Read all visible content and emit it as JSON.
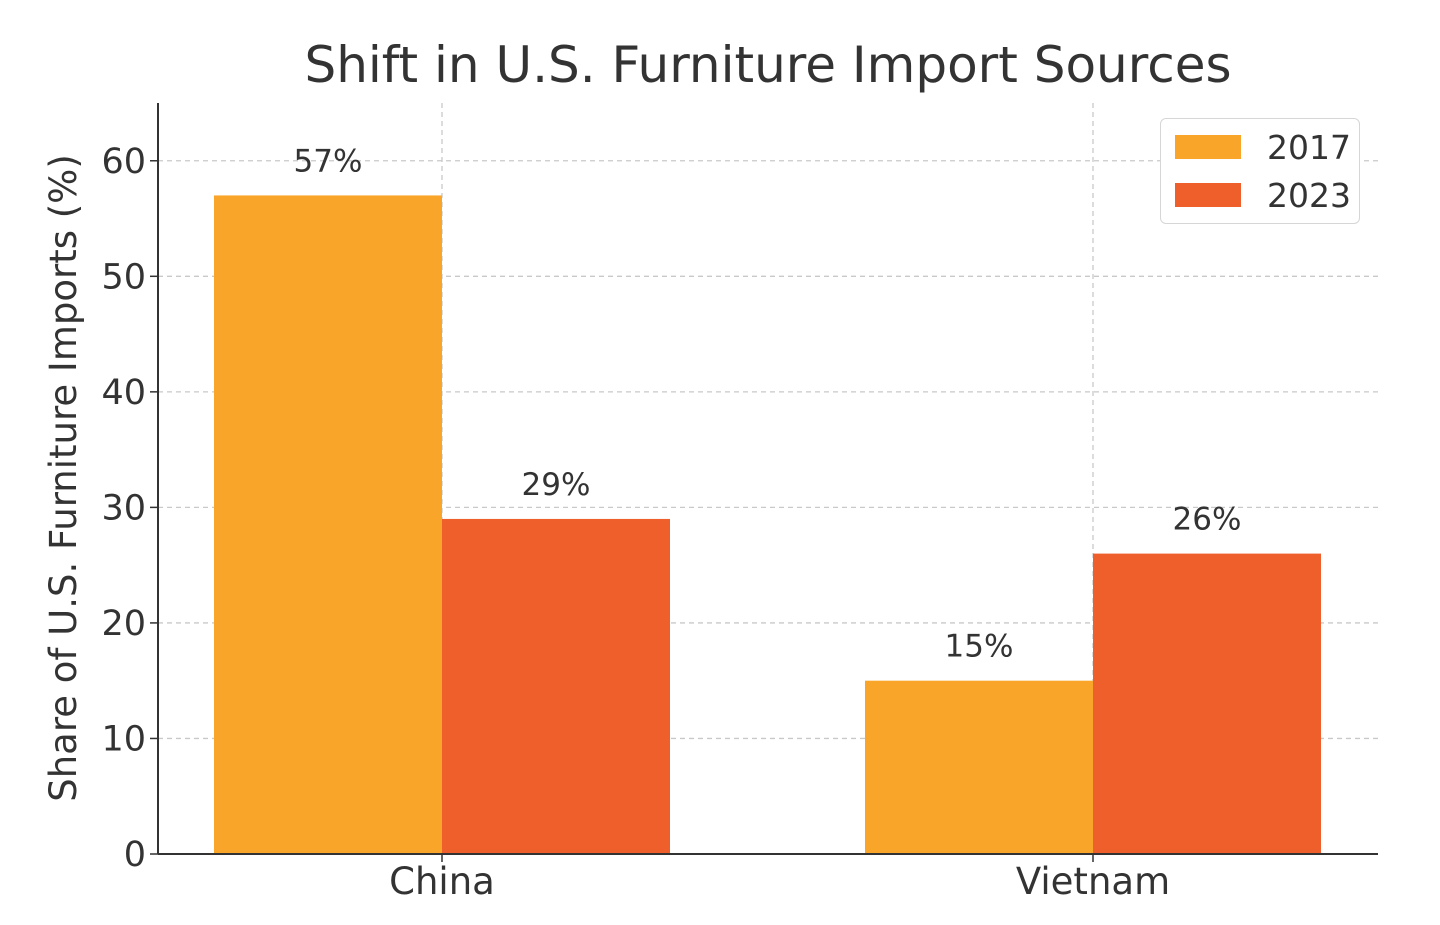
{
  "chart_data": {
    "type": "bar",
    "title": "Shift in U.S. Furniture Import Sources",
    "ylabel": "Share of U.S. Furniture Imports (%)",
    "xlabel": "",
    "categories": [
      "China",
      "Vietnam"
    ],
    "series": [
      {
        "name": "2017",
        "values": [
          57,
          15
        ],
        "labels": [
          "57%",
          "15%"
        ],
        "color": "#f9a529"
      },
      {
        "name": "2023",
        "values": [
          29,
          26
        ],
        "labels": [
          "29%",
          "26%"
        ],
        "color": "#ef5f2b"
      }
    ],
    "ylim": [
      0,
      65
    ],
    "yticks": [
      "0",
      "10",
      "20",
      "30",
      "40",
      "50",
      "60"
    ],
    "grid": true,
    "grid_style": "dashed",
    "legend_position": "top-right"
  }
}
